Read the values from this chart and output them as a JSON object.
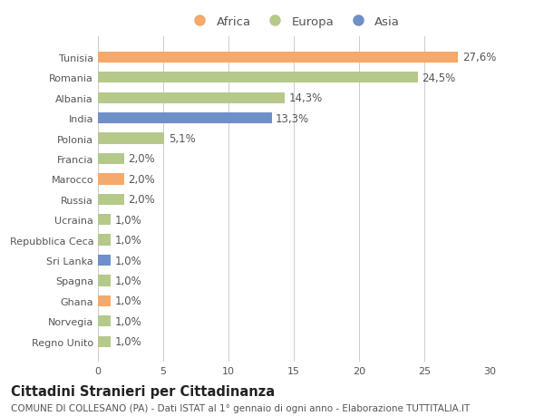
{
  "countries": [
    "Tunisia",
    "Romania",
    "Albania",
    "India",
    "Polonia",
    "Francia",
    "Marocco",
    "Russia",
    "Ucraina",
    "Repubblica Ceca",
    "Sri Lanka",
    "Spagna",
    "Ghana",
    "Norvegia",
    "Regno Unito"
  ],
  "values": [
    27.6,
    24.5,
    14.3,
    13.3,
    5.1,
    2.0,
    2.0,
    2.0,
    1.0,
    1.0,
    1.0,
    1.0,
    1.0,
    1.0,
    1.0
  ],
  "labels": [
    "27,6%",
    "24,5%",
    "14,3%",
    "13,3%",
    "5,1%",
    "2,0%",
    "2,0%",
    "2,0%",
    "1,0%",
    "1,0%",
    "1,0%",
    "1,0%",
    "1,0%",
    "1,0%",
    "1,0%"
  ],
  "continents": [
    "Africa",
    "Europa",
    "Europa",
    "Asia",
    "Europa",
    "Europa",
    "Africa",
    "Europa",
    "Europa",
    "Europa",
    "Asia",
    "Europa",
    "Africa",
    "Europa",
    "Europa"
  ],
  "colors": {
    "Africa": "#F5A96B",
    "Europa": "#B5C98A",
    "Asia": "#6E8FC9"
  },
  "bg_color": "#ffffff",
  "grid_color": "#cccccc",
  "title": "Cittadini Stranieri per Cittadinanza",
  "subtitle": "COMUNE DI COLLESANO (PA) - Dati ISTAT al 1° gennaio di ogni anno - Elaborazione TUTTITALIA.IT",
  "xlim": [
    0,
    30
  ],
  "xticks": [
    0,
    5,
    10,
    15,
    20,
    25,
    30
  ],
  "bar_height": 0.55,
  "font_size_labels": 8.5,
  "font_size_yticks": 8,
  "font_size_xticks": 8,
  "font_size_legend": 9.5,
  "font_size_title": 10.5,
  "font_size_subtitle": 7.5
}
